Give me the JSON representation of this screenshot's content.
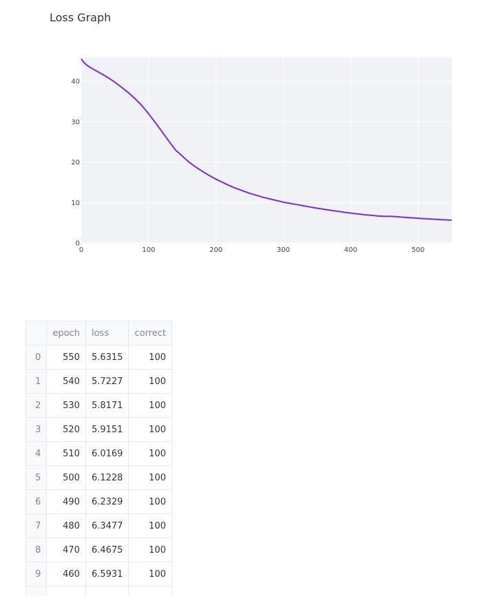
{
  "page": {
    "title": "Loss Graph"
  },
  "chart_data": {
    "type": "line",
    "title": "",
    "xlabel": "",
    "ylabel": "",
    "xlim": [
      0,
      550
    ],
    "ylim": [
      0,
      46
    ],
    "x_ticks": [
      0,
      100,
      200,
      300,
      400,
      500
    ],
    "y_ticks": [
      0,
      10,
      20,
      30,
      40
    ],
    "grid": true,
    "line_color": "#7e26ef",
    "plot_bg": "#f0f2f6",
    "series": [
      {
        "x": [
          0,
          5,
          10,
          20,
          30,
          40,
          50,
          60,
          70,
          80,
          90,
          100,
          110,
          120,
          130,
          140,
          150,
          160,
          170,
          180,
          190,
          200,
          210,
          220,
          230,
          240,
          250,
          260,
          270,
          280,
          290,
          300,
          310,
          320,
          330,
          340,
          350,
          360,
          370,
          380,
          390,
          400,
          410,
          420,
          430,
          440,
          450,
          460,
          470,
          480,
          490,
          500,
          510,
          520,
          530,
          540,
          550
        ],
        "y": [
          45.5,
          44.5,
          43.8,
          42.8,
          41.9,
          40.9,
          39.8,
          38.5,
          37.2,
          35.7,
          34.0,
          32.0,
          29.8,
          27.5,
          25.2,
          23.0,
          21.5,
          20.0,
          18.8,
          17.7,
          16.7,
          15.8,
          15.0,
          14.2,
          13.5,
          12.9,
          12.3,
          11.8,
          11.3,
          10.9,
          10.5,
          10.1,
          9.8,
          9.5,
          9.2,
          8.9,
          8.6,
          8.35,
          8.1,
          7.85,
          7.6,
          7.4,
          7.2,
          7.0,
          6.85,
          6.7,
          6.6,
          6.5931,
          6.4675,
          6.3477,
          6.2329,
          6.1228,
          6.0169,
          5.9151,
          5.8171,
          5.7227,
          5.6315
        ]
      }
    ]
  },
  "table": {
    "columns": [
      "epoch",
      "loss",
      "correct"
    ],
    "rows": [
      {
        "idx": "0",
        "epoch": "550",
        "loss": "5.6315",
        "correct": "100"
      },
      {
        "idx": "1",
        "epoch": "540",
        "loss": "5.7227",
        "correct": "100"
      },
      {
        "idx": "2",
        "epoch": "530",
        "loss": "5.8171",
        "correct": "100"
      },
      {
        "idx": "3",
        "epoch": "520",
        "loss": "5.9151",
        "correct": "100"
      },
      {
        "idx": "4",
        "epoch": "510",
        "loss": "6.0169",
        "correct": "100"
      },
      {
        "idx": "5",
        "epoch": "500",
        "loss": "6.1228",
        "correct": "100"
      },
      {
        "idx": "6",
        "epoch": "490",
        "loss": "6.2329",
        "correct": "100"
      },
      {
        "idx": "7",
        "epoch": "480",
        "loss": "6.3477",
        "correct": "100"
      },
      {
        "idx": "8",
        "epoch": "470",
        "loss": "6.4675",
        "correct": "100"
      },
      {
        "idx": "9",
        "epoch": "460",
        "loss": "6.5931",
        "correct": "100"
      }
    ]
  }
}
